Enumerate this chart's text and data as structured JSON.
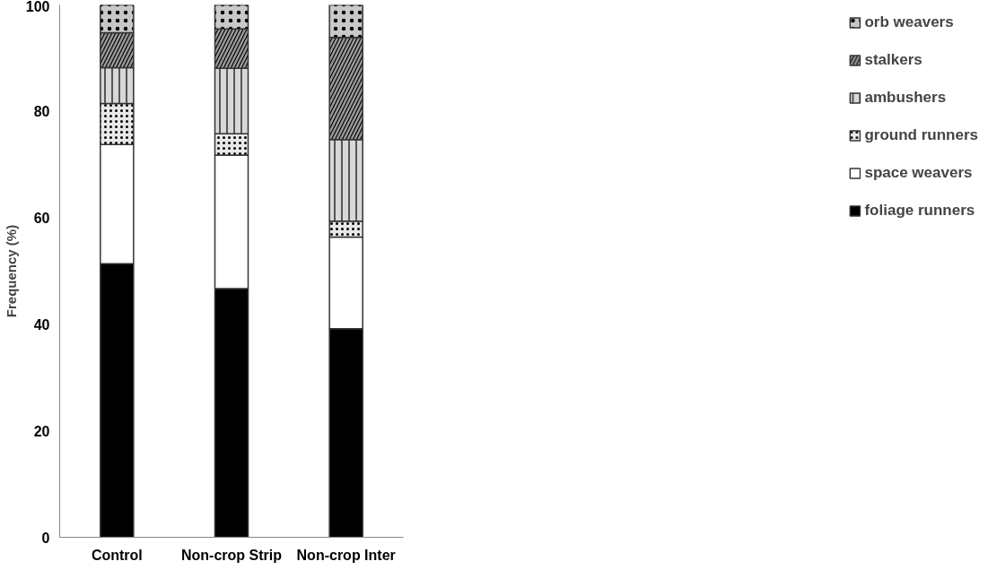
{
  "chart_data": {
    "type": "bar",
    "stacked": true,
    "ylabel": "Frequency (%)",
    "categories": [
      "Control",
      "Non-crop Strip",
      "Non-crop Inter"
    ],
    "series": [
      {
        "name": "foliage runners",
        "color": "#000000",
        "values": [
          51.4,
          46.7,
          39.2
        ]
      },
      {
        "name": "space weavers",
        "color": "#ffffff",
        "values": [
          22.4,
          25.1,
          17.2
        ]
      },
      {
        "name": "ground runners",
        "color": "#e8e8e8",
        "values": [
          7.7,
          4.0,
          3.0
        ]
      },
      {
        "name": "ambushers",
        "color": "#d8d8d8",
        "values": [
          6.7,
          12.3,
          15.3
        ]
      },
      {
        "name": "stalkers",
        "color": "#9a9a9a",
        "values": [
          6.6,
          7.4,
          19.2
        ]
      },
      {
        "name": "orb weavers",
        "color": "#c8c8c8",
        "values": [
          5.2,
          4.5,
          6.1
        ]
      }
    ],
    "ylim": [
      0,
      100
    ],
    "yticks": [
      0,
      20,
      40,
      60,
      80,
      100
    ],
    "grid": false,
    "legend": "right"
  }
}
